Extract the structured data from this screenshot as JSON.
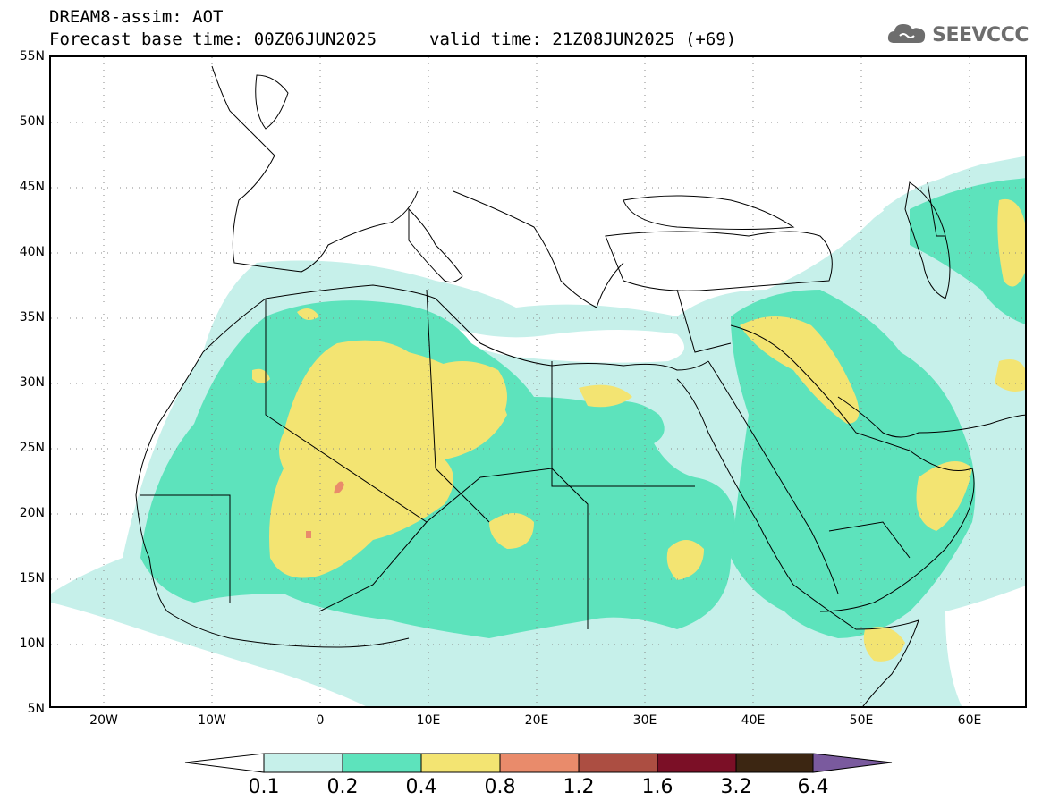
{
  "header": {
    "line1": "DREAM8-assim: AOT",
    "line2": "Forecast base time: 00Z06JUN2025",
    "valid": "valid time: 21Z08JUN2025 (+69)"
  },
  "logo": {
    "text": "SEEVCCC",
    "icon": "cloud-icon",
    "color": "#6d6d6d"
  },
  "lat_labels": [
    "55N",
    "50N",
    "45N",
    "40N",
    "35N",
    "30N",
    "25N",
    "20N",
    "15N",
    "10N",
    "5N"
  ],
  "lon_labels": [
    "20W",
    "10W",
    "0",
    "10E",
    "20E",
    "30E",
    "40E",
    "50E",
    "60E"
  ],
  "colorbar": {
    "labels": [
      "0.1",
      "0.2",
      "0.4",
      "0.8",
      "1.2",
      "1.6",
      "3.2",
      "6.4"
    ],
    "colors": [
      "#ffffff",
      "#c6f0ea",
      "#5de3bc",
      "#f3e472",
      "#e98b6b",
      "#ac4e42",
      "#7b0f26",
      "#3c2612",
      "#7a5a9e"
    ]
  },
  "map": {
    "extent": {
      "lon": [
        -25,
        65
      ],
      "lat": [
        5,
        55
      ]
    },
    "grid": "dotted"
  }
}
